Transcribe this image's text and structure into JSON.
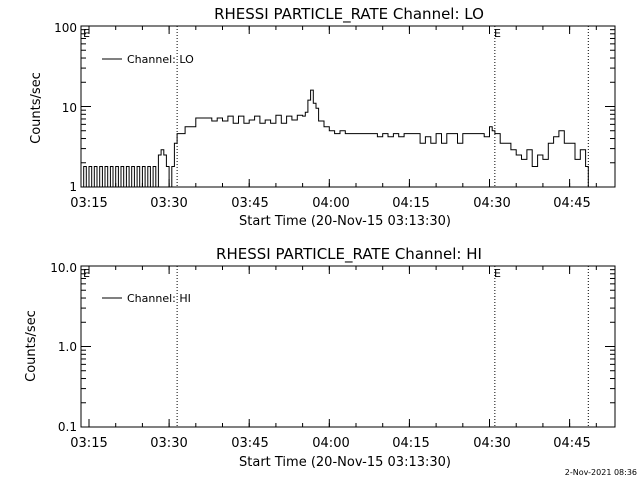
{
  "chart_data": [
    {
      "type": "line",
      "title": "RHESSI PARTICLE_RATE Channel: LO",
      "xlabel": "Start Time (20-Nov-15 03:13:30)",
      "ylabel": "Counts/sec",
      "yscale": "log",
      "ylim": [
        1,
        100
      ],
      "xlim": [
        "03:13:30",
        "04:53:30"
      ],
      "x_ticks": [
        "03:15",
        "03:30",
        "03:45",
        "04:00",
        "04:15",
        "04:30",
        "04:45"
      ],
      "y_ticks": [
        "1",
        "10",
        "100"
      ],
      "legend": "top-left",
      "markers": [
        {
          "time": "03:31:30",
          "label": ""
        },
        {
          "time": "04:31:00",
          "label": "E"
        },
        {
          "time": "04:48:30",
          "label": ""
        }
      ],
      "edge_label": "E",
      "series": [
        {
          "name": "Channel: LO",
          "x": [
            "03:13:30",
            "03:14:00",
            "03:14:30",
            "03:15:00",
            "03:15:30",
            "03:16:00",
            "03:16:30",
            "03:17:00",
            "03:17:30",
            "03:18:00",
            "03:18:30",
            "03:19:00",
            "03:19:30",
            "03:20:00",
            "03:20:30",
            "03:21:00",
            "03:21:30",
            "03:22:00",
            "03:22:30",
            "03:23:00",
            "03:23:30",
            "03:24:00",
            "03:24:30",
            "03:25:00",
            "03:25:30",
            "03:26:00",
            "03:26:30",
            "03:27:00",
            "03:27:30",
            "03:28:00",
            "03:28:30",
            "03:29:00",
            "03:29:30",
            "03:30:00",
            "03:30:30",
            "03:31:00",
            "03:31:30",
            "03:32:00",
            "03:33:00",
            "03:34:00",
            "03:35:00",
            "03:36:00",
            "03:37:00",
            "03:38:00",
            "03:39:00",
            "03:40:00",
            "03:41:00",
            "03:42:00",
            "03:43:00",
            "03:44:00",
            "03:45:00",
            "03:46:00",
            "03:47:00",
            "03:48:00",
            "03:49:00",
            "03:50:00",
            "03:51:00",
            "03:52:00",
            "03:53:00",
            "03:54:00",
            "03:55:00",
            "03:55:30",
            "03:56:00",
            "03:56:30",
            "03:57:00",
            "03:57:30",
            "03:58:00",
            "03:59:00",
            "04:00:00",
            "04:01:00",
            "04:02:00",
            "04:03:00",
            "04:04:00",
            "04:05:00",
            "04:06:00",
            "04:07:00",
            "04:08:00",
            "04:09:00",
            "04:10:00",
            "04:11:00",
            "04:12:00",
            "04:13:00",
            "04:14:00",
            "04:15:00",
            "04:16:00",
            "04:17:00",
            "04:18:00",
            "04:19:00",
            "04:20:00",
            "04:21:00",
            "04:22:00",
            "04:23:00",
            "04:24:00",
            "04:25:00",
            "04:26:00",
            "04:27:00",
            "04:28:00",
            "04:29:00",
            "04:30:00",
            "04:30:30",
            "04:31:00",
            "04:32:00",
            "04:33:00",
            "04:34:00",
            "04:35:00",
            "04:36:00",
            "04:37:00",
            "04:38:00",
            "04:39:00",
            "04:40:00",
            "04:41:00",
            "04:42:00",
            "04:43:00",
            "04:44:00",
            "04:45:00",
            "04:46:00",
            "04:47:00",
            "04:48:00",
            "04:48:30"
          ],
          "values": [
            1,
            1.8,
            1,
            1.8,
            1,
            1.8,
            1,
            1.8,
            1,
            1.8,
            1,
            1.8,
            1,
            1.8,
            1,
            1.8,
            1,
            1.8,
            1,
            1.8,
            1,
            1.8,
            1,
            1.8,
            1,
            1.8,
            1,
            1.8,
            1,
            2.5,
            2.9,
            2.5,
            1.8,
            1,
            1.8,
            3.5,
            4.6,
            4.6,
            5.6,
            5.6,
            7.2,
            7.2,
            7.2,
            6.6,
            7.2,
            6.6,
            7.6,
            6.2,
            7.6,
            6.2,
            6.8,
            7.6,
            6.2,
            6.8,
            6.2,
            7.8,
            6.2,
            7.6,
            6.8,
            7.8,
            7.6,
            8.5,
            12,
            16,
            11,
            9.5,
            6.6,
            5.6,
            5.0,
            4.6,
            5.0,
            4.6,
            4.6,
            4.6,
            4.6,
            4.6,
            4.6,
            4.2,
            4.6,
            4.2,
            4.6,
            4.2,
            4.6,
            4.6,
            4.6,
            3.5,
            4.2,
            3.5,
            4.6,
            3.5,
            4.6,
            4.6,
            3.5,
            4.6,
            4.6,
            4.6,
            4.6,
            4.2,
            5.6,
            5.0,
            4.6,
            3.5,
            3.5,
            2.9,
            2.5,
            2.2,
            2.9,
            1.8,
            2.5,
            2.2,
            3.5,
            4.2,
            5.0,
            3.5,
            3.5,
            2.2,
            2.9,
            1.8,
            1.0
          ]
        }
      ]
    },
    {
      "type": "line",
      "title": "RHESSI PARTICLE_RATE Channel: HI",
      "xlabel": "Start Time (20-Nov-15 03:13:30)",
      "ylabel": "Counts/sec",
      "yscale": "log",
      "ylim": [
        0.1,
        10
      ],
      "xlim": [
        "03:13:30",
        "04:53:30"
      ],
      "x_ticks": [
        "03:15",
        "03:30",
        "03:45",
        "04:00",
        "04:15",
        "04:30",
        "04:45"
      ],
      "y_ticks": [
        "0.1",
        "1.0",
        "10.0"
      ],
      "legend": "top-left",
      "markers": [
        {
          "time": "03:31:30",
          "label": ""
        },
        {
          "time": "04:31:00",
          "label": "E"
        },
        {
          "time": "04:48:30",
          "label": ""
        }
      ],
      "edge_label": "E",
      "series": [
        {
          "name": "Channel: HI",
          "x": [],
          "values": []
        }
      ]
    }
  ],
  "footer": {
    "timestamp": "2-Nov-2021 08:36"
  }
}
